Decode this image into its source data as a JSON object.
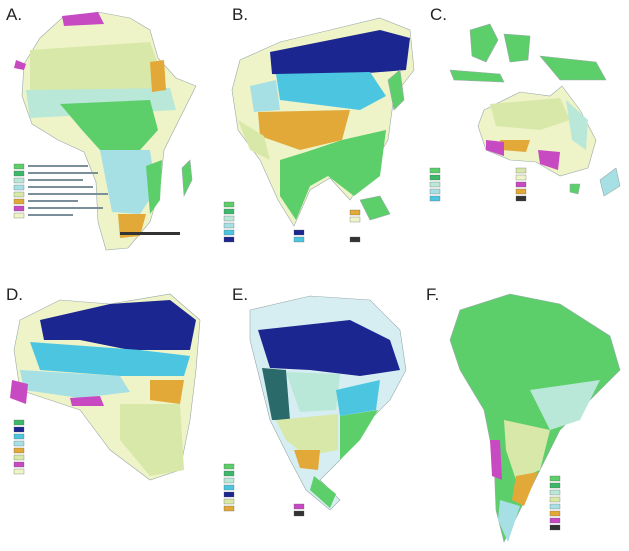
{
  "panels": [
    {
      "label": "A."
    },
    {
      "label": "B."
    },
    {
      "label": "C."
    },
    {
      "label": "D."
    },
    {
      "label": "E."
    },
    {
      "label": "F."
    }
  ]
}
